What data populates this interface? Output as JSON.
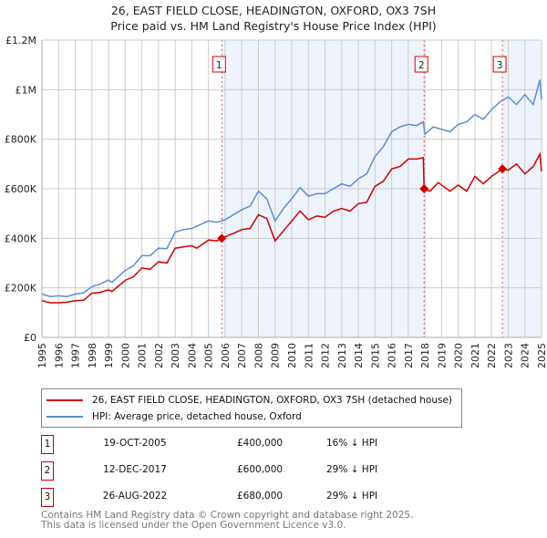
{
  "chart_data": {
    "type": "line",
    "title": "26, EAST FIELD CLOSE, HEADINGTON, OXFORD, OX3 7SH",
    "subtitle": "Price paid vs. HM Land Registry's House Price Index (HPI)",
    "xlim": [
      1995,
      2025
    ],
    "ylim": [
      0,
      1200000
    ],
    "yticks": [
      {
        "v": 0,
        "label": "£0"
      },
      {
        "v": 200000,
        "label": "£200K"
      },
      {
        "v": 400000,
        "label": "£400K"
      },
      {
        "v": 600000,
        "label": "£600K"
      },
      {
        "v": 800000,
        "label": "£800K"
      },
      {
        "v": 1000000,
        "label": "£1M"
      },
      {
        "v": 1200000,
        "label": "£1.2M"
      }
    ],
    "xticks": [
      "1995",
      "1996",
      "1997",
      "1998",
      "1999",
      "2000",
      "2001",
      "2002",
      "2003",
      "2004",
      "2005",
      "2006",
      "2007",
      "2008",
      "2009",
      "2010",
      "2011",
      "2012",
      "2013",
      "2014",
      "2015",
      "2016",
      "2017",
      "2018",
      "2019",
      "2020",
      "2021",
      "2022",
      "2023",
      "2024",
      "2025"
    ],
    "grid": true,
    "series": [
      {
        "name": "26, EAST FIELD CLOSE, HEADINGTON, OXFORD, OX3 7SH (detached house)",
        "color": "#cc0000",
        "x": [
          1995,
          1995.5,
          1996,
          1996.5,
          1997,
          1997.5,
          1998,
          1998.5,
          1999,
          1999.2,
          2000,
          2000.5,
          2001,
          2001.5,
          2002,
          2002.5,
          2003,
          2003.5,
          2004,
          2004.3,
          2005,
          2005.5,
          2005.8,
          2006.5,
          2007,
          2007.5,
          2008,
          2008.5,
          2009,
          2009.5,
          2010,
          2010.5,
          2011,
          2011.5,
          2012,
          2012.5,
          2013,
          2013.5,
          2014,
          2014.5,
          2015,
          2015.5,
          2016,
          2016.5,
          2017,
          2017.5,
          2017.9,
          2017.95,
          2018.3,
          2018.8,
          2019.5,
          2020,
          2020.5,
          2021,
          2021.5,
          2022,
          2022.65,
          2023,
          2023.5,
          2024,
          2024.5,
          2024.9,
          2025
        ],
        "y": [
          148000,
          140000,
          140000,
          142000,
          148000,
          150000,
          178000,
          182000,
          192000,
          185000,
          230000,
          245000,
          280000,
          275000,
          305000,
          300000,
          360000,
          365000,
          370000,
          360000,
          393000,
          390000,
          400000,
          420000,
          435000,
          440000,
          495000,
          480000,
          390000,
          430000,
          470000,
          510000,
          475000,
          490000,
          485000,
          510000,
          520000,
          510000,
          540000,
          545000,
          610000,
          630000,
          680000,
          690000,
          720000,
          720000,
          725000,
          600000,
          590000,
          625000,
          590000,
          615000,
          590000,
          650000,
          620000,
          650000,
          680000,
          675000,
          700000,
          660000,
          690000,
          740000,
          670000
        ]
      },
      {
        "name": "HPI: Average price, detached house, Oxford",
        "color": "#5b8fd0",
        "x": [
          1995,
          1995.5,
          1996,
          1996.5,
          1997,
          1997.5,
          1998,
          1998.5,
          1999,
          1999.2,
          2000,
          2000.5,
          2001,
          2001.5,
          2002,
          2002.5,
          2003,
          2003.5,
          2004,
          2004.5,
          2005,
          2005.5,
          2006,
          2006.5,
          2007,
          2007.5,
          2008,
          2008.5,
          2009,
          2009.5,
          2010,
          2010.5,
          2011,
          2011.5,
          2012,
          2012.5,
          2013,
          2013.5,
          2014,
          2014.5,
          2015,
          2015.5,
          2016,
          2016.5,
          2017,
          2017.5,
          2017.9,
          2018.0,
          2018.5,
          2019,
          2019.5,
          2020,
          2020.5,
          2021,
          2021.5,
          2022,
          2022.5,
          2023,
          2023.5,
          2024,
          2024.5,
          2024.9,
          2025
        ],
        "y": [
          175000,
          165000,
          168000,
          165000,
          175000,
          180000,
          205000,
          215000,
          232000,
          222000,
          270000,
          290000,
          330000,
          330000,
          360000,
          358000,
          425000,
          435000,
          440000,
          455000,
          470000,
          465000,
          475000,
          495000,
          515000,
          530000,
          590000,
          560000,
          470000,
          520000,
          560000,
          605000,
          570000,
          580000,
          580000,
          600000,
          620000,
          610000,
          640000,
          660000,
          730000,
          770000,
          830000,
          850000,
          860000,
          855000,
          870000,
          820000,
          850000,
          840000,
          830000,
          860000,
          870000,
          900000,
          880000,
          920000,
          950000,
          970000,
          940000,
          980000,
          940000,
          1040000,
          960000
        ]
      }
    ],
    "sales": [
      {
        "n": "1",
        "x": 2005.8,
        "y": 400000,
        "date": "19-OCT-2005",
        "price": "£400,000",
        "hpi": "16% ↓ HPI"
      },
      {
        "n": "2",
        "x": 2017.95,
        "y": 600000,
        "date": "12-DEC-2017",
        "price": "£600,000",
        "hpi": "29% ↓ HPI"
      },
      {
        "n": "3",
        "x": 2022.65,
        "y": 680000,
        "date": "26-AUG-2022",
        "price": "£680,000",
        "hpi": "29% ↓ HPI"
      }
    ],
    "legend_position": "bottom"
  },
  "footer": {
    "line1": "Contains HM Land Registry data © Crown copyright and database right 2025.",
    "line2": "This data is licensed under the Open Government Licence v3.0."
  }
}
